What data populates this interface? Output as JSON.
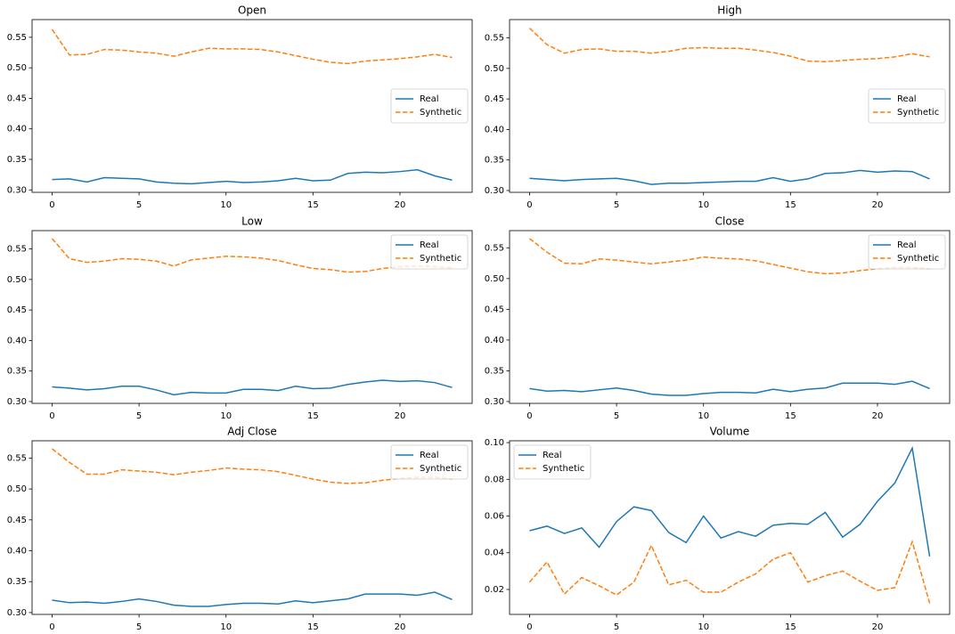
{
  "chart_data": [
    {
      "type": "line",
      "title": "Open",
      "legend": "center right",
      "x": [
        0,
        1,
        2,
        3,
        4,
        5,
        6,
        7,
        8,
        9,
        10,
        11,
        12,
        13,
        14,
        15,
        16,
        17,
        18,
        19,
        20,
        21,
        22,
        23
      ],
      "xlim": [
        -1.15,
        24.15
      ],
      "xticks": [
        0,
        5,
        10,
        15,
        20
      ],
      "ylim": [
        0.296,
        0.579
      ],
      "yticks": [
        {
          "value": 0.3,
          "label": "0.30"
        },
        0.35,
        {
          "value": 0.4,
          "label": "0.40"
        },
        0.45,
        {
          "value": 0.5,
          "label": "0.50"
        },
        0.55
      ],
      "series": [
        {
          "name": "Real",
          "color": "#1f77b4",
          "style": "solid",
          "values": [
            0.317,
            0.318,
            0.313,
            0.32,
            0.319,
            0.318,
            0.313,
            0.311,
            0.31,
            0.312,
            0.314,
            0.312,
            0.313,
            0.315,
            0.319,
            0.315,
            0.316,
            0.327,
            0.329,
            0.328,
            0.33,
            0.333,
            0.323,
            0.316
          ]
        },
        {
          "name": "Synthetic",
          "color": "#ff7f0e",
          "style": "dashed",
          "values": [
            0.563,
            0.521,
            0.522,
            0.53,
            0.529,
            0.526,
            0.524,
            0.519,
            0.526,
            0.532,
            0.531,
            0.531,
            0.53,
            0.526,
            0.52,
            0.514,
            0.509,
            0.507,
            0.511,
            0.513,
            0.515,
            0.518,
            0.522,
            0.517
          ]
        }
      ]
    },
    {
      "type": "line",
      "title": "High",
      "legend": "center right",
      "x": [
        0,
        1,
        2,
        3,
        4,
        5,
        6,
        7,
        8,
        9,
        10,
        11,
        12,
        13,
        14,
        15,
        16,
        17,
        18,
        19,
        20,
        21,
        22,
        23
      ],
      "xlim": [
        -1.15,
        24.15
      ],
      "xticks": [
        0,
        5,
        10,
        15,
        20
      ],
      "ylim": [
        0.297,
        0.58
      ],
      "yticks": [
        {
          "value": 0.3,
          "label": "0.30"
        },
        0.35,
        {
          "value": 0.4,
          "label": "0.40"
        },
        0.45,
        {
          "value": 0.5,
          "label": "0.50"
        },
        0.55
      ],
      "series": [
        {
          "name": "Real",
          "color": "#1f77b4",
          "style": "solid",
          "values": [
            0.32,
            0.318,
            0.316,
            0.318,
            0.319,
            0.32,
            0.316,
            0.31,
            0.312,
            0.312,
            0.313,
            0.314,
            0.315,
            0.315,
            0.321,
            0.315,
            0.319,
            0.328,
            0.329,
            0.333,
            0.33,
            0.332,
            0.331,
            0.319
          ]
        },
        {
          "name": "Synthetic",
          "color": "#ff7f0e",
          "style": "dashed",
          "values": [
            0.566,
            0.539,
            0.525,
            0.531,
            0.532,
            0.528,
            0.528,
            0.525,
            0.528,
            0.533,
            0.534,
            0.533,
            0.533,
            0.53,
            0.526,
            0.52,
            0.512,
            0.511,
            0.513,
            0.515,
            0.516,
            0.519,
            0.524,
            0.519
          ]
        }
      ]
    },
    {
      "type": "line",
      "title": "Low",
      "legend": "upper right",
      "x": [
        0,
        1,
        2,
        3,
        4,
        5,
        6,
        7,
        8,
        9,
        10,
        11,
        12,
        13,
        14,
        15,
        16,
        17,
        18,
        19,
        20,
        21,
        22,
        23
      ],
      "xlim": [
        -1.15,
        24.15
      ],
      "xticks": [
        0,
        5,
        10,
        15,
        20
      ],
      "ylim": [
        0.297,
        0.58
      ],
      "yticks": [
        {
          "value": 0.3,
          "label": "0.30"
        },
        0.35,
        {
          "value": 0.4,
          "label": "0.40"
        },
        0.45,
        {
          "value": 0.5,
          "label": "0.50"
        },
        0.55
      ],
      "series": [
        {
          "name": "Real",
          "color": "#1f77b4",
          "style": "solid",
          "values": [
            0.324,
            0.322,
            0.319,
            0.321,
            0.325,
            0.325,
            0.319,
            0.311,
            0.315,
            0.314,
            0.314,
            0.32,
            0.32,
            0.318,
            0.325,
            0.321,
            0.322,
            0.328,
            0.332,
            0.335,
            0.333,
            0.334,
            0.331,
            0.323
          ]
        },
        {
          "name": "Synthetic",
          "color": "#ff7f0e",
          "style": "dashed",
          "values": [
            0.567,
            0.534,
            0.528,
            0.53,
            0.534,
            0.533,
            0.53,
            0.522,
            0.532,
            0.535,
            0.538,
            0.537,
            0.535,
            0.531,
            0.524,
            0.518,
            0.516,
            0.512,
            0.513,
            0.518,
            0.521,
            0.522,
            0.521,
            0.519
          ]
        }
      ]
    },
    {
      "type": "line",
      "title": "Close",
      "legend": "upper right",
      "x": [
        0,
        1,
        2,
        3,
        4,
        5,
        6,
        7,
        8,
        9,
        10,
        11,
        12,
        13,
        14,
        15,
        16,
        17,
        18,
        19,
        20,
        21,
        22,
        23
      ],
      "xlim": [
        -1.15,
        24.15
      ],
      "xticks": [
        0,
        5,
        10,
        15,
        20
      ],
      "ylim": [
        0.297,
        0.578
      ],
      "yticks": [
        {
          "value": 0.3,
          "label": "0.30"
        },
        0.35,
        {
          "value": 0.4,
          "label": "0.40"
        },
        0.45,
        {
          "value": 0.5,
          "label": "0.50"
        },
        0.55
      ],
      "series": [
        {
          "name": "Real",
          "color": "#1f77b4",
          "style": "solid",
          "values": [
            0.321,
            0.317,
            0.318,
            0.316,
            0.319,
            0.322,
            0.318,
            0.312,
            0.31,
            0.31,
            0.313,
            0.315,
            0.315,
            0.314,
            0.32,
            0.316,
            0.32,
            0.322,
            0.33,
            0.33,
            0.33,
            0.328,
            0.333,
            0.321
          ]
        },
        {
          "name": "Synthetic",
          "color": "#ff7f0e",
          "style": "dashed",
          "values": [
            0.565,
            0.543,
            0.525,
            0.524,
            0.532,
            0.53,
            0.527,
            0.524,
            0.527,
            0.53,
            0.535,
            0.533,
            0.532,
            0.529,
            0.523,
            0.517,
            0.511,
            0.508,
            0.509,
            0.513,
            0.516,
            0.518,
            0.518,
            0.516
          ]
        }
      ]
    },
    {
      "type": "line",
      "title": "Adj Close",
      "legend": "upper right",
      "x": [
        0,
        1,
        2,
        3,
        4,
        5,
        6,
        7,
        8,
        9,
        10,
        11,
        12,
        13,
        14,
        15,
        16,
        17,
        18,
        19,
        20,
        21,
        22,
        23
      ],
      "xlim": [
        -1.15,
        24.15
      ],
      "xticks": [
        0,
        5,
        10,
        15,
        20
      ],
      "ylim": [
        0.297,
        0.578
      ],
      "yticks": [
        {
          "value": 0.3,
          "label": "0.30"
        },
        0.35,
        {
          "value": 0.4,
          "label": "0.40"
        },
        0.45,
        {
          "value": 0.5,
          "label": "0.50"
        },
        0.55
      ],
      "series": [
        {
          "name": "Real",
          "color": "#1f77b4",
          "style": "solid",
          "values": [
            0.32,
            0.316,
            0.317,
            0.315,
            0.318,
            0.322,
            0.318,
            0.312,
            0.31,
            0.31,
            0.313,
            0.315,
            0.315,
            0.314,
            0.319,
            0.316,
            0.319,
            0.322,
            0.33,
            0.33,
            0.33,
            0.328,
            0.333,
            0.321
          ]
        },
        {
          "name": "Synthetic",
          "color": "#ff7f0e",
          "style": "dashed",
          "values": [
            0.565,
            0.543,
            0.524,
            0.524,
            0.531,
            0.529,
            0.527,
            0.523,
            0.527,
            0.53,
            0.534,
            0.532,
            0.531,
            0.528,
            0.522,
            0.516,
            0.511,
            0.509,
            0.51,
            0.514,
            0.517,
            0.519,
            0.519,
            0.516
          ]
        }
      ]
    },
    {
      "type": "line",
      "title": "Volume",
      "legend": "upper left",
      "x": [
        0,
        1,
        2,
        3,
        4,
        5,
        6,
        7,
        8,
        9,
        10,
        11,
        12,
        13,
        14,
        15,
        16,
        17,
        18,
        19,
        20,
        21,
        22,
        23
      ],
      "xlim": [
        -1.15,
        24.15
      ],
      "xticks": [
        0,
        5,
        10,
        15,
        20
      ],
      "ylim": [
        0.0064,
        0.101
      ],
      "yticks": [
        0.02,
        0.04,
        0.06,
        0.08,
        {
          "value": 0.1,
          "label": "0.10"
        }
      ],
      "series": [
        {
          "name": "Real",
          "color": "#1f77b4",
          "style": "solid",
          "values": [
            0.052,
            0.0545,
            0.0505,
            0.0535,
            0.043,
            0.057,
            0.065,
            0.063,
            0.051,
            0.0455,
            0.06,
            0.048,
            0.0515,
            0.049,
            0.055,
            0.056,
            0.0555,
            0.062,
            0.0485,
            0.0555,
            0.068,
            0.078,
            0.097,
            0.038
          ]
        },
        {
          "name": "Synthetic",
          "color": "#ff7f0e",
          "style": "dashed",
          "values": [
            0.024,
            0.035,
            0.0175,
            0.0265,
            0.022,
            0.017,
            0.024,
            0.044,
            0.0225,
            0.025,
            0.0185,
            0.0185,
            0.024,
            0.0285,
            0.0365,
            0.04,
            0.024,
            0.0275,
            0.03,
            0.0245,
            0.0195,
            0.021,
            0.046,
            0.0125
          ]
        }
      ]
    }
  ]
}
